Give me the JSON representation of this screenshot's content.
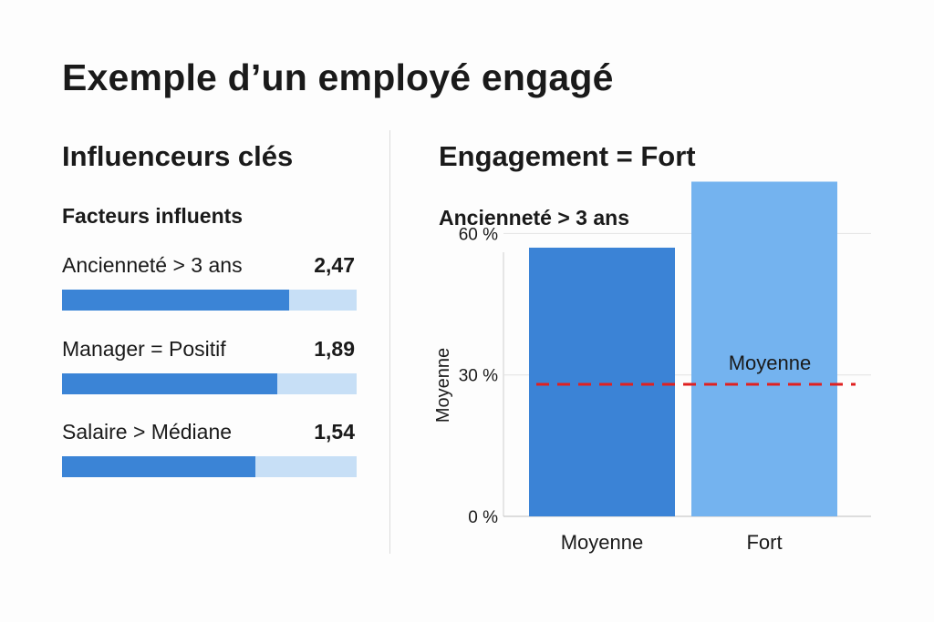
{
  "title": "Exemple d’un employé engagé",
  "left": {
    "title": "Influenceurs clés",
    "subtitle": "Facteurs influents",
    "factors": [
      {
        "label": "Ancienneté > 3 ans",
        "value": "2,47",
        "fill": 0.77
      },
      {
        "label": "Manager = Positif",
        "value": "1,89",
        "fill": 0.73
      },
      {
        "label": "Salaire > Médiane",
        "value": "1,54",
        "fill": 0.655
      }
    ],
    "colors": {
      "fill": "#3b84d6",
      "track": "#c7dff6"
    }
  },
  "right": {
    "title": "Engagement = Fort"
  },
  "chart_data": {
    "type": "bar",
    "title": "Ancienneté > 3 ans",
    "categories": [
      "Moyenne",
      "Fort"
    ],
    "values": [
      57,
      71
    ],
    "ylabel": "Moyenne",
    "xlabel": "",
    "ylim": [
      0,
      68
    ],
    "yticks": [
      0,
      30,
      60
    ],
    "ytick_labels": [
      "0 %",
      "30 %",
      "60 %"
    ],
    "grid": true,
    "bar_colors": [
      "#3b83d6",
      "#74b3ef"
    ],
    "reference_line": {
      "value": 28,
      "label": "Moyenne",
      "color": "#e02020",
      "style": "dashed"
    }
  }
}
